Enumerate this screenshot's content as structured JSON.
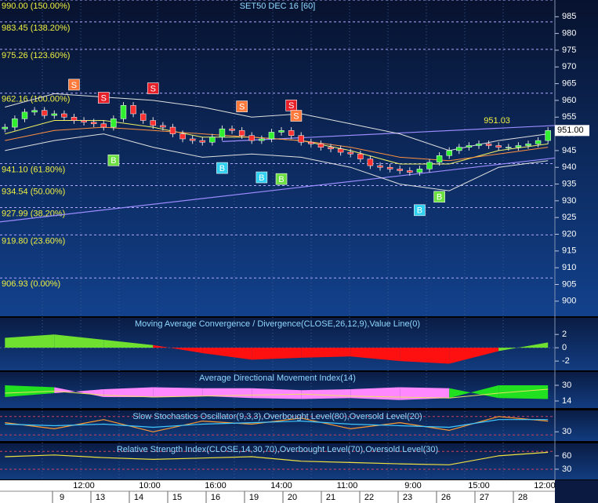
{
  "chart_data": [
    {
      "type": "candlestick",
      "title": "SET50 DEC 16  [60]",
      "xlim": [
        -0.5,
        55.7
      ],
      "ylim": [
        895.5,
        990
      ],
      "yticks": [
        900,
        905,
        910,
        915,
        920,
        925,
        930,
        935,
        940,
        945,
        950,
        955,
        960,
        965,
        970,
        975,
        980,
        985
      ],
      "open": [
        951.5,
        952.0,
        954.5,
        956.5,
        957.0,
        955.5,
        956.0,
        955.0,
        954.0,
        953.5,
        953.0,
        952.0,
        954.5,
        958.5,
        956.0,
        954.0,
        952.5,
        952.0,
        950.0,
        948.5,
        948.0,
        947.5,
        949.0,
        951.5,
        951.0,
        949.5,
        948.0,
        948.5,
        950.5,
        951.0,
        949.5,
        947.5,
        947.0,
        946.0,
        945.5,
        944.5,
        944.0,
        942.5,
        940.5,
        940.0,
        939.5,
        939.0,
        938.5,
        939.5,
        941.5,
        943.5,
        945.0,
        946.0,
        946.5,
        947.0,
        946.5,
        946.0,
        946.0,
        946.5,
        947.0,
        948.0
      ],
      "high": [
        953,
        955.5,
        957.5,
        958,
        958,
        957,
        957,
        956,
        955,
        954.5,
        954,
        955.5,
        959.5,
        959.5,
        957,
        955,
        953.5,
        953,
        951,
        949.5,
        949,
        950,
        952.5,
        952.5,
        952,
        950.5,
        949.5,
        951.5,
        952,
        952,
        950.5,
        948.5,
        948,
        947,
        946.5,
        945.5,
        945,
        943.5,
        941.5,
        941,
        940.5,
        940,
        940.5,
        942.5,
        944.5,
        946,
        947,
        947.5,
        948,
        948,
        947.5,
        947,
        947.5,
        948,
        949,
        952
      ],
      "low": [
        950.5,
        951,
        953.5,
        955.5,
        954.5,
        954.5,
        954,
        953,
        952.5,
        952,
        951,
        951,
        953.5,
        955,
        953,
        951.5,
        951,
        949,
        947.5,
        947,
        946.5,
        946.5,
        948,
        950,
        948.5,
        947,
        947,
        947.5,
        949.5,
        948.5,
        946.5,
        946,
        945,
        944.5,
        943.5,
        943,
        941.5,
        939.5,
        939,
        938.5,
        938,
        937.5,
        937.5,
        938.5,
        940.5,
        942.5,
        944,
        945,
        945.5,
        945.5,
        945,
        945,
        945,
        945.5,
        946,
        947
      ],
      "close": [
        952.0,
        954.5,
        956.5,
        957.0,
        955.5,
        956.0,
        955.0,
        954.0,
        953.5,
        953.0,
        952.0,
        954.5,
        958.5,
        956.0,
        954.0,
        952.5,
        952.0,
        950.0,
        948.5,
        948.0,
        947.5,
        949.0,
        951.5,
        951.0,
        949.5,
        948.0,
        948.5,
        950.5,
        951.0,
        949.5,
        947.5,
        947.0,
        946.0,
        945.5,
        944.5,
        944.0,
        942.5,
        940.5,
        940.0,
        939.5,
        939.0,
        938.5,
        939.5,
        941.5,
        943.5,
        945.0,
        946.0,
        946.5,
        947.0,
        946.5,
        946.0,
        946.0,
        946.5,
        947.0,
        948.0,
        951.0
      ],
      "up_color": "#30f030",
      "down_color": "#ff3030",
      "overlays": [
        {
          "color": "#f0f060",
          "x": [
            0,
            5,
            10,
            15,
            20,
            25,
            30,
            35,
            40,
            45,
            50,
            55
          ],
          "values": [
            950,
            954,
            954,
            952,
            949,
            949,
            948,
            945,
            941,
            941,
            945,
            947
          ]
        },
        {
          "color": "#ff9040",
          "x": [
            0,
            5,
            10,
            15,
            20,
            25,
            30,
            35,
            40,
            45,
            50,
            55
          ],
          "values": [
            948,
            951,
            952,
            951,
            950,
            949,
            948,
            946,
            943,
            942,
            944,
            946
          ]
        },
        {
          "color": "#e0e0e0",
          "x": [
            0,
            5,
            10,
            15,
            20,
            25,
            30,
            35,
            40,
            45,
            50,
            55
          ],
          "values": [
            958,
            962,
            961,
            960,
            958,
            955,
            956,
            953,
            950,
            945,
            948,
            950
          ]
        },
        {
          "color": "#e0e0e0",
          "x": [
            0,
            5,
            10,
            15,
            20,
            25,
            30,
            35,
            40,
            45,
            50,
            55
          ],
          "values": [
            945,
            948,
            950,
            946,
            943,
            944,
            943,
            940,
            935,
            933,
            940,
            942
          ]
        }
      ],
      "trendlines": [
        {
          "color": "#9c8cff",
          "x": [
            -0.5,
            55.7
          ],
          "values": [
            923.7,
            942.8
          ]
        },
        {
          "color": "#9c8cff",
          "x": [
            22,
            55.7
          ],
          "values": [
            947.7,
            952.5
          ]
        }
      ],
      "fib_levels": [
        {
          "value": 990.0,
          "label": "990.00 (150.00%)"
        },
        {
          "value": 983.45,
          "label": "983.45 (138.20%)"
        },
        {
          "value": 975.26,
          "label": "975.26 (123.60%)"
        },
        {
          "value": 962.16,
          "label": "962.16 (100.00%)"
        },
        {
          "value": 941.1,
          "label": "941.10 (61.80%)"
        },
        {
          "value": 934.54,
          "label": "934.54 (50.00%)"
        },
        {
          "value": 927.99,
          "label": "927.99 (38.20%)"
        },
        {
          "value": 919.8,
          "label": "919.80 (23.60%)"
        },
        {
          "value": 906.93,
          "label": "906.93 (0.00%)"
        }
      ],
      "signals": [
        {
          "label": "S",
          "index": 7,
          "price": 964.7,
          "color": "#ff7a3a"
        },
        {
          "label": "S",
          "index": 10,
          "price": 960.8,
          "color": "#e8202a"
        },
        {
          "label": "S",
          "index": 15,
          "price": 963.6,
          "color": "#e8202a"
        },
        {
          "label": "S",
          "index": 24,
          "price": 958.2,
          "color": "#ff7a3a"
        },
        {
          "label": "S",
          "index": 29,
          "price": 958.5,
          "color": "#e8202a"
        },
        {
          "label": "S",
          "index": 29.5,
          "price": 955.4,
          "color": "#ff7a3a"
        },
        {
          "label": "B",
          "index": 11,
          "price": 942.1,
          "color": "#6ce040"
        },
        {
          "label": "B",
          "index": 22,
          "price": 939.8,
          "color": "#30d0f0"
        },
        {
          "label": "B",
          "index": 26,
          "price": 937.0,
          "color": "#30d0f0"
        },
        {
          "label": "B",
          "index": 28,
          "price": 936.5,
          "color": "#6ce040"
        },
        {
          "label": "B",
          "index": 42,
          "price": 927.2,
          "color": "#30d0f0"
        },
        {
          "label": "B",
          "index": 44,
          "price": 931.2,
          "color": "#6ce040"
        }
      ],
      "last_price": {
        "value": 951,
        "label": "951.00"
      },
      "annotation": 951.03
    },
    {
      "type": "area",
      "title": "Moving Average Convergence / Divergence(CLOSE,26,12,9),Value Line(0)",
      "ylim": [
        -3.4,
        4.5
      ],
      "yticks": [
        -2,
        0,
        2
      ],
      "x": [
        0,
        5,
        10,
        15,
        20,
        25,
        30,
        35,
        40,
        45,
        50,
        55
      ],
      "values": [
        1.5,
        2.0,
        1.2,
        0.4,
        -0.8,
        -1.8,
        -1.5,
        -1.3,
        -2.0,
        -2.4,
        -0.5,
        0.8
      ],
      "colors": [
        "#70e030",
        "#ff1010"
      ]
    },
    {
      "type": "band",
      "title": "Average Directional Movement Index(14)",
      "ylim": [
        6.8,
        43.6
      ],
      "yticks": [
        14,
        30
      ],
      "x": [
        0,
        5,
        10,
        15,
        20,
        25,
        30,
        35,
        40,
        45,
        50,
        55
      ],
      "series": [
        {
          "color": "#20e020",
          "values": [
            30,
            28,
            18,
            18,
            19,
            17,
            16,
            17,
            15,
            17,
            30,
            30
          ]
        },
        {
          "color": "#ff88ff",
          "values": [
            18,
            22,
            26,
            28,
            27,
            27,
            25,
            26,
            28,
            27,
            17,
            16
          ]
        },
        {
          "color": "#e8e060",
          "values": [
            22,
            24,
            20,
            18,
            19,
            20,
            21,
            19,
            18,
            17,
            22,
            26
          ]
        }
      ]
    },
    {
      "type": "line",
      "title": "Slow Stochastics Oscillator(9,3,3),Overbought Level(80),Oversold Level(20)",
      "ylim": [
        0,
        100
      ],
      "yticks": [
        30
      ],
      "levels": [
        80,
        20
      ],
      "x": [
        0,
        5,
        10,
        15,
        20,
        25,
        30,
        35,
        40,
        45,
        50,
        55
      ],
      "series": [
        {
          "color": "#ff9a30",
          "values": [
            60,
            40,
            70,
            30,
            65,
            55,
            75,
            40,
            60,
            35,
            80,
            65
          ]
        },
        {
          "color": "#40c8ff",
          "values": [
            55,
            50,
            55,
            45,
            55,
            60,
            65,
            55,
            50,
            45,
            70,
            70
          ]
        }
      ]
    },
    {
      "type": "line",
      "title": "Relative Strength Index(CLOSE,14,30,70),Overbought Level(70),Oversold Level(30)",
      "ylim": [
        7,
        88
      ],
      "yticks": [
        30,
        60
      ],
      "levels": [
        70,
        30
      ],
      "x": [
        0,
        5,
        10,
        15,
        20,
        25,
        30,
        35,
        40,
        45,
        50,
        55
      ],
      "series": [
        {
          "color": "#f0e040",
          "values": [
            58,
            62,
            56,
            52,
            55,
            58,
            48,
            45,
            42,
            40,
            60,
            68
          ]
        }
      ]
    }
  ],
  "time_axis": {
    "times": [
      "12:00",
      "10:00",
      "16:00",
      "14:00",
      "11:00",
      "9:00",
      "15:00",
      "12:00"
    ],
    "dates": [
      "9",
      "13",
      "14",
      "15",
      "16",
      "19",
      "20",
      "21",
      "22",
      "23",
      "26",
      "27",
      "28"
    ]
  }
}
